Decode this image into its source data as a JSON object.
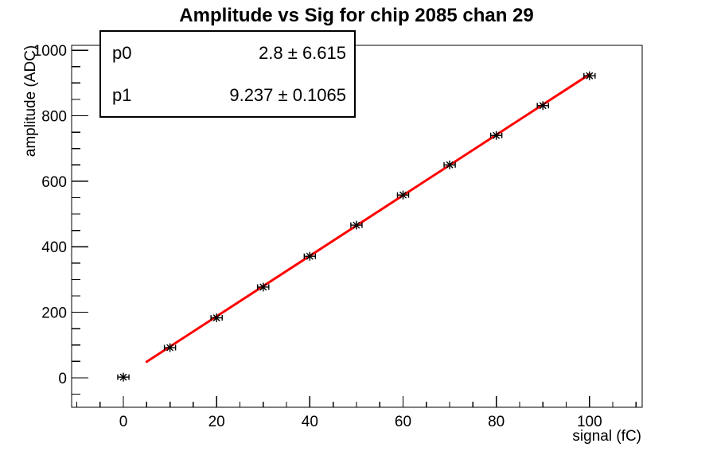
{
  "chart_data": {
    "type": "scatter",
    "title": "Amplitude vs Sig for chip 2085 chan 29",
    "xlabel": "signal (fC)",
    "ylabel": "amplitude (ADC)",
    "xlim": [
      -11.1,
      111.3
    ],
    "ylim": [
      -90,
      1015
    ],
    "x_major_ticks": [
      0,
      20,
      40,
      60,
      80,
      100
    ],
    "x_minor_step": 5,
    "y_major_ticks": [
      0,
      200,
      400,
      600,
      800,
      1000
    ],
    "y_minor_step": 50,
    "grid": false,
    "legend": "none",
    "frame_color": "#000000",
    "background_color": "#ffffff",
    "points": {
      "x": [
        0,
        10,
        20,
        30,
        40,
        50,
        60,
        70,
        80,
        90,
        100
      ],
      "y": [
        2,
        92,
        183,
        277,
        371,
        466,
        558,
        650,
        740,
        831,
        922
      ],
      "xerr": 1.2,
      "marker": "star",
      "color": "#000000"
    },
    "fit_line": {
      "name": "linear-fit",
      "p0": 2.8,
      "p1": 9.237,
      "x_range": [
        5,
        100
      ],
      "color": "#ff0000"
    },
    "stats": {
      "rows": [
        {
          "label": "p0",
          "value": "2.8 ± 6.615"
        },
        {
          "label": "p1",
          "value": "9.237 ± 0.1065"
        }
      ]
    }
  }
}
